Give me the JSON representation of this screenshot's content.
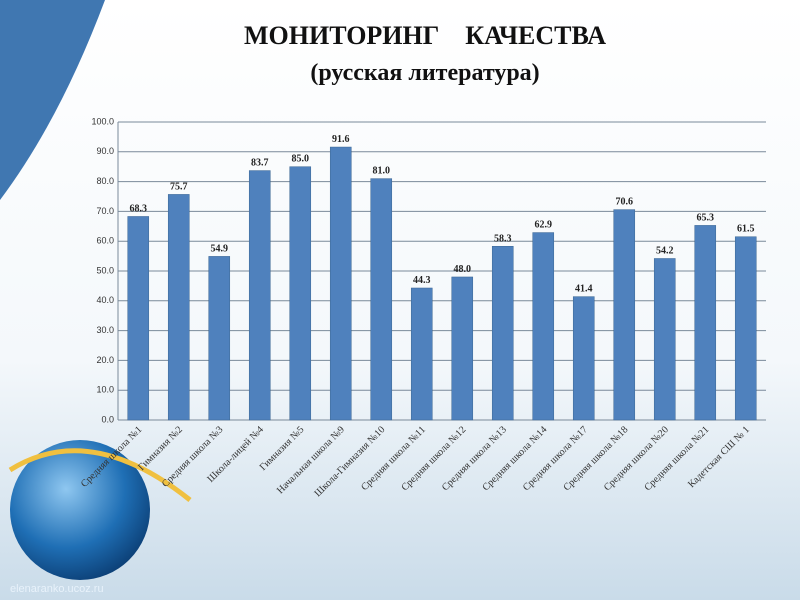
{
  "chart_data": {
    "type": "bar",
    "title": "МОНИТОРИНГ    КАЧЕСТВА",
    "subtitle": "(русская литература)",
    "watermark": "elenaranko.ucoz.ru",
    "categories": [
      "Средняя школа №1",
      "Гимназия №2",
      "Средняя школа №3",
      "Школа-лицей №4",
      "Гимназия №5",
      "Начальная школа №9",
      "Школа-Гимназия №10",
      "Средняя школа №11",
      "Средняя школа №12",
      "Средняя школа №13",
      "Средняя школа №14",
      "Средняя школа №17",
      "Средняя школа №18",
      "Средняя школа №20",
      "Средняя школа №21",
      "Кадетская СШ № 1"
    ],
    "values": [
      68.3,
      75.7,
      54.9,
      83.7,
      85.0,
      91.6,
      81.0,
      44.3,
      48.0,
      58.3,
      62.9,
      41.4,
      70.6,
      54.2,
      65.3,
      61.5
    ],
    "value_labels": [
      "68.3",
      "75.7",
      "54.9",
      "83.7",
      "85.0",
      "91.6",
      "81.0",
      "44.3",
      "48.0",
      "58.3",
      "62.9",
      "41.4",
      "70.6",
      "54.2",
      "65.3",
      "61.5"
    ],
    "color": "#4f81bd",
    "ylim": [
      0,
      100
    ],
    "yticks": [
      {
        "value": 0,
        "label": "0.0"
      },
      {
        "value": 10,
        "label": "10.0"
      },
      {
        "value": 20,
        "label": "20.0"
      },
      {
        "value": 30,
        "label": "30.0"
      },
      {
        "value": 40,
        "label": "40.0"
      },
      {
        "value": 50,
        "label": "50.0"
      },
      {
        "value": 60,
        "label": "60.0"
      },
      {
        "value": 70,
        "label": "70.0"
      },
      {
        "value": 80,
        "label": "80.0"
      },
      {
        "value": 90,
        "label": "90.0"
      },
      {
        "value": 100,
        "label": "100.0"
      }
    ],
    "grid": true
  }
}
